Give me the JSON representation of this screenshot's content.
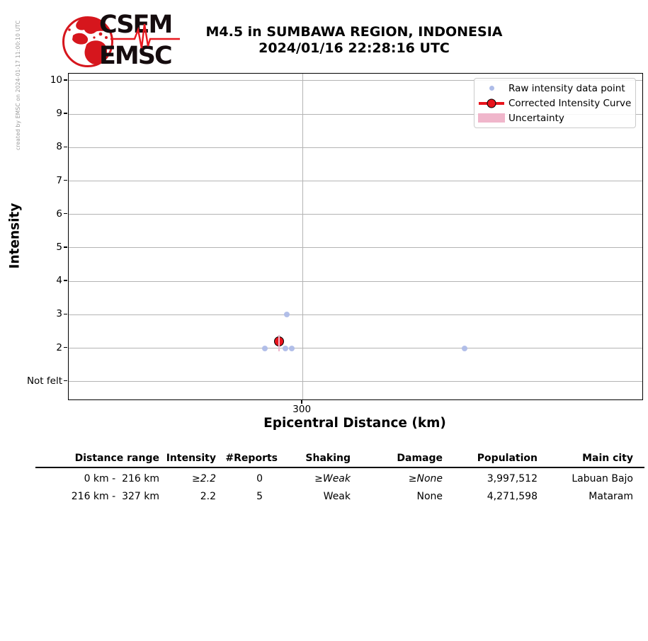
{
  "sidebar": {
    "created_by": "created by EMSC on 2024-01-17 11:00:10 UTC"
  },
  "logo": {
    "top": "CSEM",
    "bottom": "EMSC"
  },
  "title": {
    "line1": "M4.5 in SUMBAWA REGION, INDONESIA",
    "line2": "2024/01/16 22:28:16 UTC"
  },
  "chart_data": {
    "type": "scatter",
    "xlabel": "Epicentral Distance (km)",
    "ylabel": "Intensity",
    "xlim": [
      0,
      736
    ],
    "x_ticks": [
      300
    ],
    "y_ticks": [
      {
        "value": 10,
        "label": "10"
      },
      {
        "value": 9,
        "label": "9"
      },
      {
        "value": 8,
        "label": "8"
      },
      {
        "value": 7,
        "label": "7"
      },
      {
        "value": 6,
        "label": "6"
      },
      {
        "value": 5,
        "label": "5"
      },
      {
        "value": 4,
        "label": "4"
      },
      {
        "value": 3,
        "label": "3"
      },
      {
        "value": 2,
        "label": "2"
      },
      {
        "value": 1,
        "label": "Not felt"
      }
    ],
    "grid": true,
    "legend_position": "upper right",
    "series": [
      {
        "name": "Raw intensity data point",
        "kind": "scatter",
        "color": "#aebce8",
        "points": [
          [
            252,
            2
          ],
          [
            278,
            2
          ],
          [
            280,
            3
          ],
          [
            286,
            2
          ],
          [
            508,
            2
          ]
        ]
      },
      {
        "name": "Corrected Intensity Curve",
        "kind": "line_marker",
        "color": "#e8141c",
        "points": [
          [
            270,
            2.2
          ]
        ]
      },
      {
        "name": "Uncertainty",
        "kind": "band",
        "color": "#f0b6cb",
        "points": [
          [
            270,
            1.9,
            2.4
          ]
        ]
      }
    ]
  },
  "table": {
    "headers": [
      "Distance range",
      "Intensity",
      "#Reports",
      "Shaking",
      "Damage",
      "Population",
      "Main city"
    ],
    "rows": [
      [
        "0 km -  216 km",
        "≥2.2",
        "0",
        "≥Weak",
        "≥None",
        "3,997,512",
        "Labuan Bajo"
      ],
      [
        "216 km -  327 km",
        "2.2",
        "5",
        "Weak",
        "None",
        "4,271,598",
        "Mataram"
      ]
    ],
    "italic_cells": [
      [
        0,
        1
      ],
      [
        0,
        3
      ],
      [
        0,
        4
      ]
    ]
  },
  "colors": {
    "raw_point": "#aebce8",
    "curve_red": "#e8141c",
    "uncertainty_pink": "#f0b6cb",
    "grid_gray": "#b4b4b4",
    "logo_red": "#d6161d",
    "logo_text": "#150c0e"
  }
}
